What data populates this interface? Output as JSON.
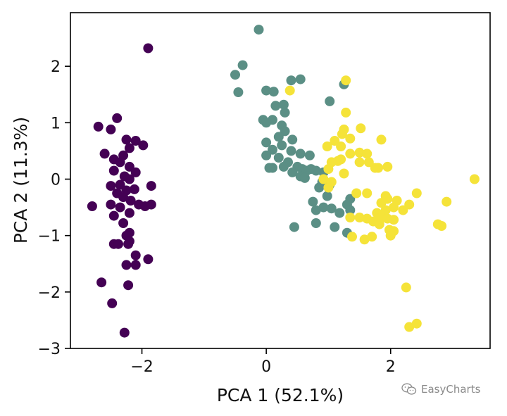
{
  "watermark": {
    "text": "EasyCharts",
    "icon": "wechat-icon"
  },
  "chart_data": {
    "type": "scatter",
    "title": "",
    "xlabel": "PCA 1 (52.1%)",
    "ylabel": "PCA 2 (11.3%)",
    "xlim": [
      -3.15,
      3.6
    ],
    "ylim": [
      -3.0,
      2.95
    ],
    "xticks": [
      {
        "value": -2,
        "label": "−2"
      },
      {
        "value": 0,
        "label": "0"
      },
      {
        "value": 2,
        "label": "2"
      }
    ],
    "yticks": [
      {
        "value": -3,
        "label": "−3"
      },
      {
        "value": -2,
        "label": "−2"
      },
      {
        "value": -1,
        "label": "−1"
      },
      {
        "value": 0,
        "label": "0"
      },
      {
        "value": 1,
        "label": "1"
      },
      {
        "value": 2,
        "label": "2"
      }
    ],
    "grid": false,
    "legend": "none",
    "series": [
      {
        "color": "#440154",
        "points": [
          [
            -1.9,
            2.32
          ],
          [
            -2.7,
            0.93
          ],
          [
            -2.5,
            0.88
          ],
          [
            -2.4,
            1.08
          ],
          [
            -2.25,
            0.7
          ],
          [
            -2.1,
            0.68
          ],
          [
            -1.98,
            0.6
          ],
          [
            -2.2,
            0.55
          ],
          [
            -2.3,
            0.42
          ],
          [
            -2.6,
            0.45
          ],
          [
            -2.45,
            0.35
          ],
          [
            -2.35,
            0.3
          ],
          [
            -2.2,
            0.22
          ],
          [
            -2.1,
            0.12
          ],
          [
            -2.45,
            0.15
          ],
          [
            -2.28,
            0.05
          ],
          [
            -2.2,
            0.0
          ],
          [
            -2.5,
            -0.12
          ],
          [
            -2.35,
            -0.1
          ],
          [
            -2.25,
            -0.2
          ],
          [
            -2.12,
            -0.18
          ],
          [
            -1.85,
            -0.12
          ],
          [
            -2.4,
            -0.25
          ],
          [
            -2.3,
            -0.32
          ],
          [
            -2.18,
            -0.38
          ],
          [
            -2.5,
            -0.45
          ],
          [
            -2.35,
            -0.5
          ],
          [
            -2.05,
            -0.45
          ],
          [
            -1.95,
            -0.48
          ],
          [
            -1.85,
            -0.45
          ],
          [
            -2.8,
            -0.48
          ],
          [
            -2.2,
            -0.6
          ],
          [
            -2.45,
            -0.65
          ],
          [
            -2.3,
            -0.78
          ],
          [
            -2.2,
            -0.95
          ],
          [
            -2.25,
            -1.0
          ],
          [
            -2.2,
            -1.1
          ],
          [
            -2.45,
            -1.15
          ],
          [
            -2.38,
            -1.15
          ],
          [
            -2.22,
            -1.15
          ],
          [
            -2.1,
            -1.35
          ],
          [
            -1.9,
            -1.42
          ],
          [
            -2.25,
            -1.52
          ],
          [
            -2.1,
            -1.52
          ],
          [
            -2.65,
            -1.83
          ],
          [
            -2.22,
            -1.88
          ],
          [
            -2.48,
            -2.2
          ],
          [
            -2.28,
            -2.72
          ]
        ]
      },
      {
        "color": "#5b8f85",
        "points": [
          [
            -0.12,
            2.65
          ],
          [
            -0.38,
            2.02
          ],
          [
            -0.5,
            1.85
          ],
          [
            -0.45,
            1.54
          ],
          [
            0.0,
            1.57
          ],
          [
            0.12,
            1.55
          ],
          [
            0.4,
            1.75
          ],
          [
            0.55,
            1.77
          ],
          [
            0.15,
            1.3
          ],
          [
            0.28,
            1.32
          ],
          [
            0.3,
            1.18
          ],
          [
            0.1,
            1.05
          ],
          [
            -0.05,
            1.05
          ],
          [
            0.0,
            1.0
          ],
          [
            0.25,
            0.95
          ],
          [
            0.3,
            0.85
          ],
          [
            0.2,
            0.75
          ],
          [
            0.0,
            0.65
          ],
          [
            0.42,
            0.7
          ],
          [
            0.25,
            0.6
          ],
          [
            0.1,
            0.52
          ],
          [
            0.4,
            0.5
          ],
          [
            0.55,
            0.45
          ],
          [
            0.7,
            0.42
          ],
          [
            0.0,
            0.42
          ],
          [
            0.2,
            0.38
          ],
          [
            0.35,
            0.3
          ],
          [
            0.5,
            0.22
          ],
          [
            0.28,
            0.22
          ],
          [
            0.1,
            0.2
          ],
          [
            0.05,
            0.2
          ],
          [
            0.42,
            0.12
          ],
          [
            0.58,
            0.18
          ],
          [
            0.65,
            0.15
          ],
          [
            0.72,
            0.18
          ],
          [
            0.8,
            0.15
          ],
          [
            0.92,
            0.12
          ],
          [
            0.55,
            0.05
          ],
          [
            0.62,
            0.02
          ],
          [
            0.9,
            -0.05
          ],
          [
            1.02,
            -0.1
          ],
          [
            0.85,
            -0.15
          ],
          [
            0.98,
            -0.3
          ],
          [
            0.75,
            -0.4
          ],
          [
            0.8,
            -0.55
          ],
          [
            0.92,
            -0.5
          ],
          [
            1.05,
            -0.52
          ],
          [
            1.18,
            -0.6
          ],
          [
            0.8,
            -0.78
          ],
          [
            0.45,
            -0.85
          ],
          [
            1.1,
            -0.85
          ],
          [
            1.3,
            -0.95
          ],
          [
            1.35,
            -0.35
          ],
          [
            1.3,
            -0.45
          ],
          [
            1.02,
            1.38
          ],
          [
            1.25,
            1.68
          ],
          [
            1.35,
            -0.55
          ]
        ]
      },
      {
        "color": "#f5e339",
        "points": [
          [
            0.38,
            1.57
          ],
          [
            1.28,
            1.75
          ],
          [
            1.25,
            0.88
          ],
          [
            1.28,
            1.18
          ],
          [
            1.52,
            0.9
          ],
          [
            1.22,
            0.8
          ],
          [
            1.35,
            0.72
          ],
          [
            1.1,
            0.68
          ],
          [
            0.98,
            0.58
          ],
          [
            1.2,
            0.58
          ],
          [
            1.35,
            0.45
          ],
          [
            1.5,
            0.47
          ],
          [
            1.62,
            0.45
          ],
          [
            1.2,
            0.35
          ],
          [
            1.15,
            0.32
          ],
          [
            1.05,
            0.3
          ],
          [
            1.0,
            0.18
          ],
          [
            1.25,
            0.1
          ],
          [
            1.85,
            0.7
          ],
          [
            1.8,
            0.2
          ],
          [
            1.75,
            0.2
          ],
          [
            1.65,
            0.3
          ],
          [
            1.5,
            0.3
          ],
          [
            1.95,
            0.22
          ],
          [
            0.92,
            0.0
          ],
          [
            1.05,
            -0.05
          ],
          [
            1.0,
            -0.15
          ],
          [
            1.45,
            -0.25
          ],
          [
            1.62,
            -0.25
          ],
          [
            1.92,
            -0.3
          ],
          [
            1.95,
            -0.35
          ],
          [
            1.85,
            -0.42
          ],
          [
            2.1,
            -0.38
          ],
          [
            2.05,
            -0.5
          ],
          [
            1.92,
            -0.55
          ],
          [
            1.78,
            -0.6
          ],
          [
            1.85,
            -0.68
          ],
          [
            1.95,
            -0.7
          ],
          [
            2.05,
            -0.72
          ],
          [
            2.2,
            -0.55
          ],
          [
            2.3,
            -0.45
          ],
          [
            2.42,
            -0.25
          ],
          [
            2.9,
            -0.4
          ],
          [
            1.35,
            -0.68
          ],
          [
            1.5,
            -0.68
          ],
          [
            1.62,
            -0.7
          ],
          [
            1.72,
            -0.75
          ],
          [
            1.82,
            -0.8
          ],
          [
            1.98,
            -0.9
          ],
          [
            1.38,
            -1.02
          ],
          [
            1.58,
            -1.07
          ],
          [
            1.7,
            -1.02
          ],
          [
            2.0,
            -1.0
          ],
          [
            2.05,
            -0.92
          ],
          [
            2.76,
            -0.8
          ],
          [
            2.82,
            -0.83
          ],
          [
            3.35,
            0.0
          ],
          [
            2.25,
            -1.92
          ],
          [
            2.3,
            -2.62
          ],
          [
            2.42,
            -2.56
          ]
        ]
      }
    ]
  }
}
